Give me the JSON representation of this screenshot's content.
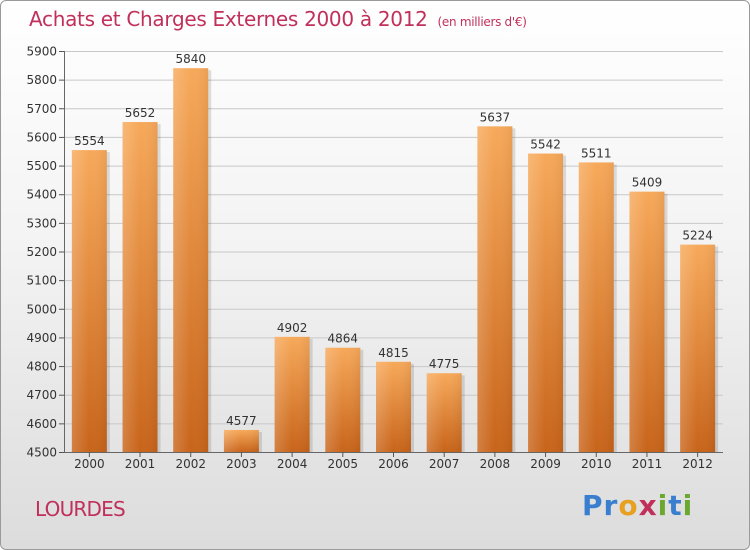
{
  "title": "Achats et Charges Externes 2000 à 2012",
  "unit_note": "(en milliers d'€)",
  "city": "LOURDES",
  "logo": "Proxiti",
  "colors": {
    "title": "#c0305a",
    "bar_top": "#f7a95a",
    "bar_bottom": "#c8641a",
    "grid": "#c8c8c8"
  },
  "chart_data": {
    "type": "bar",
    "title": "Achats et Charges Externes 2000 à 2012",
    "subtitle": "(en milliers d'€)",
    "xlabel": "",
    "ylabel": "",
    "categories": [
      "2000",
      "2001",
      "2002",
      "2003",
      "2004",
      "2005",
      "2006",
      "2007",
      "2008",
      "2009",
      "2010",
      "2011",
      "2012"
    ],
    "values": [
      5554,
      5652,
      5840,
      4577,
      4902,
      4864,
      4815,
      4775,
      5637,
      5542,
      5511,
      5409,
      5224
    ],
    "ylim": [
      4500,
      5900
    ],
    "yticks": [
      4500,
      4600,
      4700,
      4800,
      4900,
      5000,
      5100,
      5200,
      5300,
      5400,
      5500,
      5600,
      5700,
      5800,
      5900
    ],
    "grid": true,
    "legend": "none"
  }
}
